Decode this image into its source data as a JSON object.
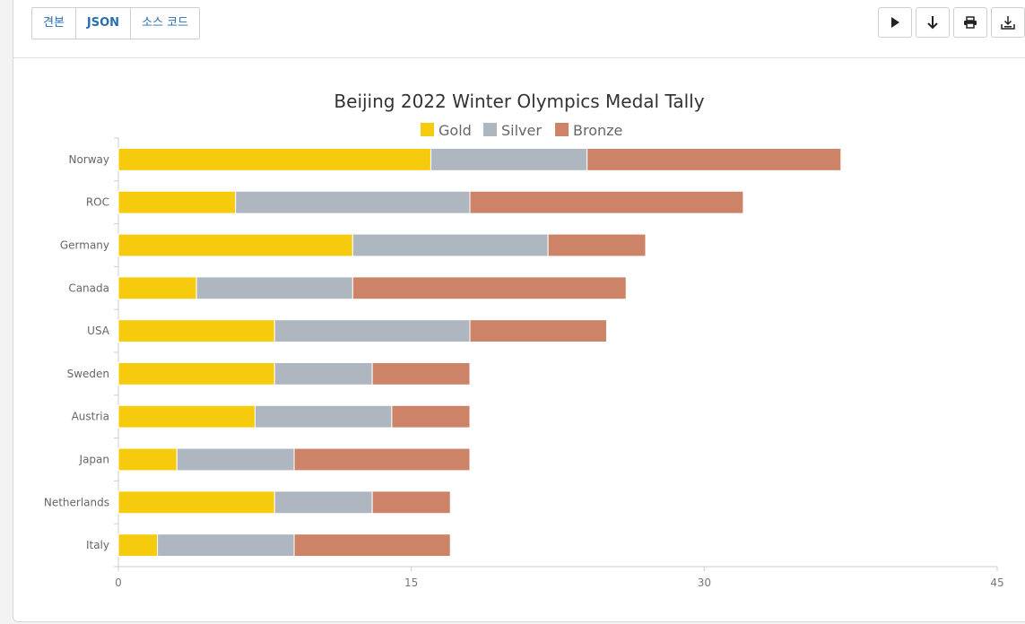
{
  "tabs": [
    {
      "label": "견본",
      "active": false
    },
    {
      "label": "JSON",
      "active": true
    },
    {
      "label": "소스 코드",
      "active": false
    }
  ],
  "actions": [
    {
      "icon": "play-icon"
    },
    {
      "icon": "download-arrow-icon"
    },
    {
      "icon": "print-icon"
    },
    {
      "icon": "save-icon"
    }
  ],
  "chart_data": {
    "type": "bar",
    "orientation": "horizontal",
    "stacked": true,
    "title": "Beijing 2022 Winter Olympics Medal Tally",
    "categories": [
      "Norway",
      "ROC",
      "Germany",
      "Canada",
      "USA",
      "Sweden",
      "Austria",
      "Japan",
      "Netherlands",
      "Italy"
    ],
    "series": [
      {
        "name": "Gold",
        "color": "#f7cb0d",
        "values": [
          16,
          6,
          12,
          4,
          8,
          8,
          7,
          3,
          8,
          2
        ]
      },
      {
        "name": "Silver",
        "color": "#aeb6bf",
        "values": [
          8,
          12,
          10,
          8,
          10,
          5,
          7,
          6,
          5,
          7
        ]
      },
      {
        "name": "Bronze",
        "color": "#cc8367",
        "values": [
          13,
          14,
          5,
          14,
          7,
          5,
          4,
          9,
          4,
          8
        ]
      }
    ],
    "xlim": [
      0,
      45
    ],
    "xticks": [
      "0",
      "15",
      "30",
      "45"
    ],
    "legend_position": "top",
    "grid": false
  }
}
